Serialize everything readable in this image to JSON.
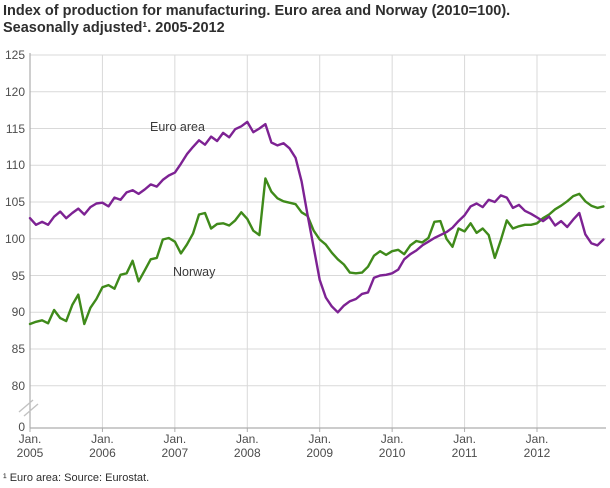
{
  "header": {
    "title_line1": "Index of production for manufacturing. Euro area and Norway (2010=100).",
    "title_line2": "Seasonally adjusted¹. 2005-2012"
  },
  "footnote": "¹ Euro area: Source: Eurostat.",
  "chart_data": {
    "type": "line",
    "frequency": "monthly",
    "x_start": "Jan 2005",
    "x_end": "Dec 2012",
    "x_tick_top": "Jan.",
    "x_tick_years": [
      "2005",
      "2006",
      "2007",
      "2008",
      "2009",
      "2010",
      "2011",
      "2012"
    ],
    "y_ticks": [
      "80",
      "85",
      "90",
      "95",
      "100",
      "105",
      "110",
      "115",
      "120",
      "125"
    ],
    "y_zero_label": "0",
    "ylim_display": [
      80,
      125
    ],
    "axis_break": true,
    "grid": true,
    "legend_position": "inline-annotations",
    "colors": {
      "grid": "#d9d9d9",
      "axis": "#adadad",
      "break_mark": "#c2c2c2"
    },
    "series": [
      {
        "name": "Euro area",
        "color": "#7d2293",
        "values": [
          102.8,
          101.9,
          102.3,
          101.9,
          103.0,
          103.7,
          102.8,
          103.5,
          104.1,
          103.3,
          104.3,
          104.8,
          104.9,
          104.4,
          105.6,
          105.3,
          106.3,
          106.6,
          106.1,
          106.7,
          107.4,
          107.1,
          108.0,
          108.6,
          109.0,
          110.2,
          111.5,
          112.5,
          113.4,
          112.8,
          113.9,
          113.3,
          114.4,
          113.8,
          114.9,
          115.3,
          115.9,
          114.5,
          115.0,
          115.6,
          113.1,
          112.7,
          113.0,
          112.3,
          111.0,
          107.8,
          103.2,
          98.8,
          94.4,
          92.0,
          90.8,
          90.0,
          90.9,
          91.5,
          91.8,
          92.5,
          92.7,
          94.7,
          95.0,
          95.1,
          95.3,
          95.8,
          97.2,
          97.9,
          98.4,
          99.1,
          99.6,
          100.1,
          100.5,
          100.9,
          101.5,
          102.4,
          103.2,
          104.4,
          104.8,
          104.3,
          105.3,
          105.0,
          105.9,
          105.6,
          104.2,
          104.6,
          103.8,
          103.4,
          102.9,
          102.4,
          103.0,
          101.8,
          102.4,
          101.6,
          102.6,
          103.5,
          100.6,
          99.4,
          99.1,
          99.9
        ]
      },
      {
        "name": "Norway",
        "color": "#3f8a1a",
        "values": [
          88.4,
          88.7,
          88.9,
          88.5,
          90.3,
          89.2,
          88.8,
          91.0,
          92.4,
          88.4,
          90.6,
          91.8,
          93.4,
          93.7,
          93.2,
          95.1,
          95.3,
          97.0,
          94.2,
          95.7,
          97.2,
          97.4,
          99.9,
          100.1,
          99.6,
          98.0,
          99.2,
          100.7,
          103.3,
          103.5,
          101.4,
          102.0,
          102.1,
          101.8,
          102.5,
          103.6,
          102.7,
          101.1,
          100.5,
          108.2,
          106.4,
          105.5,
          105.1,
          104.9,
          104.7,
          103.6,
          103.1,
          101.1,
          99.9,
          99.2,
          98.1,
          97.2,
          96.5,
          95.4,
          95.3,
          95.4,
          96.2,
          97.7,
          98.3,
          97.8,
          98.3,
          98.5,
          97.9,
          99.1,
          99.7,
          99.5,
          100.1,
          102.3,
          102.4,
          100.0,
          98.9,
          101.4,
          101.0,
          102.1,
          100.8,
          101.4,
          100.5,
          97.4,
          99.8,
          102.5,
          101.4,
          101.7,
          101.9,
          101.9,
          102.1,
          102.8,
          103.3,
          104.0,
          104.5,
          105.1,
          105.8,
          106.1,
          105.1,
          104.5,
          104.2,
          104.4
        ]
      }
    ]
  }
}
